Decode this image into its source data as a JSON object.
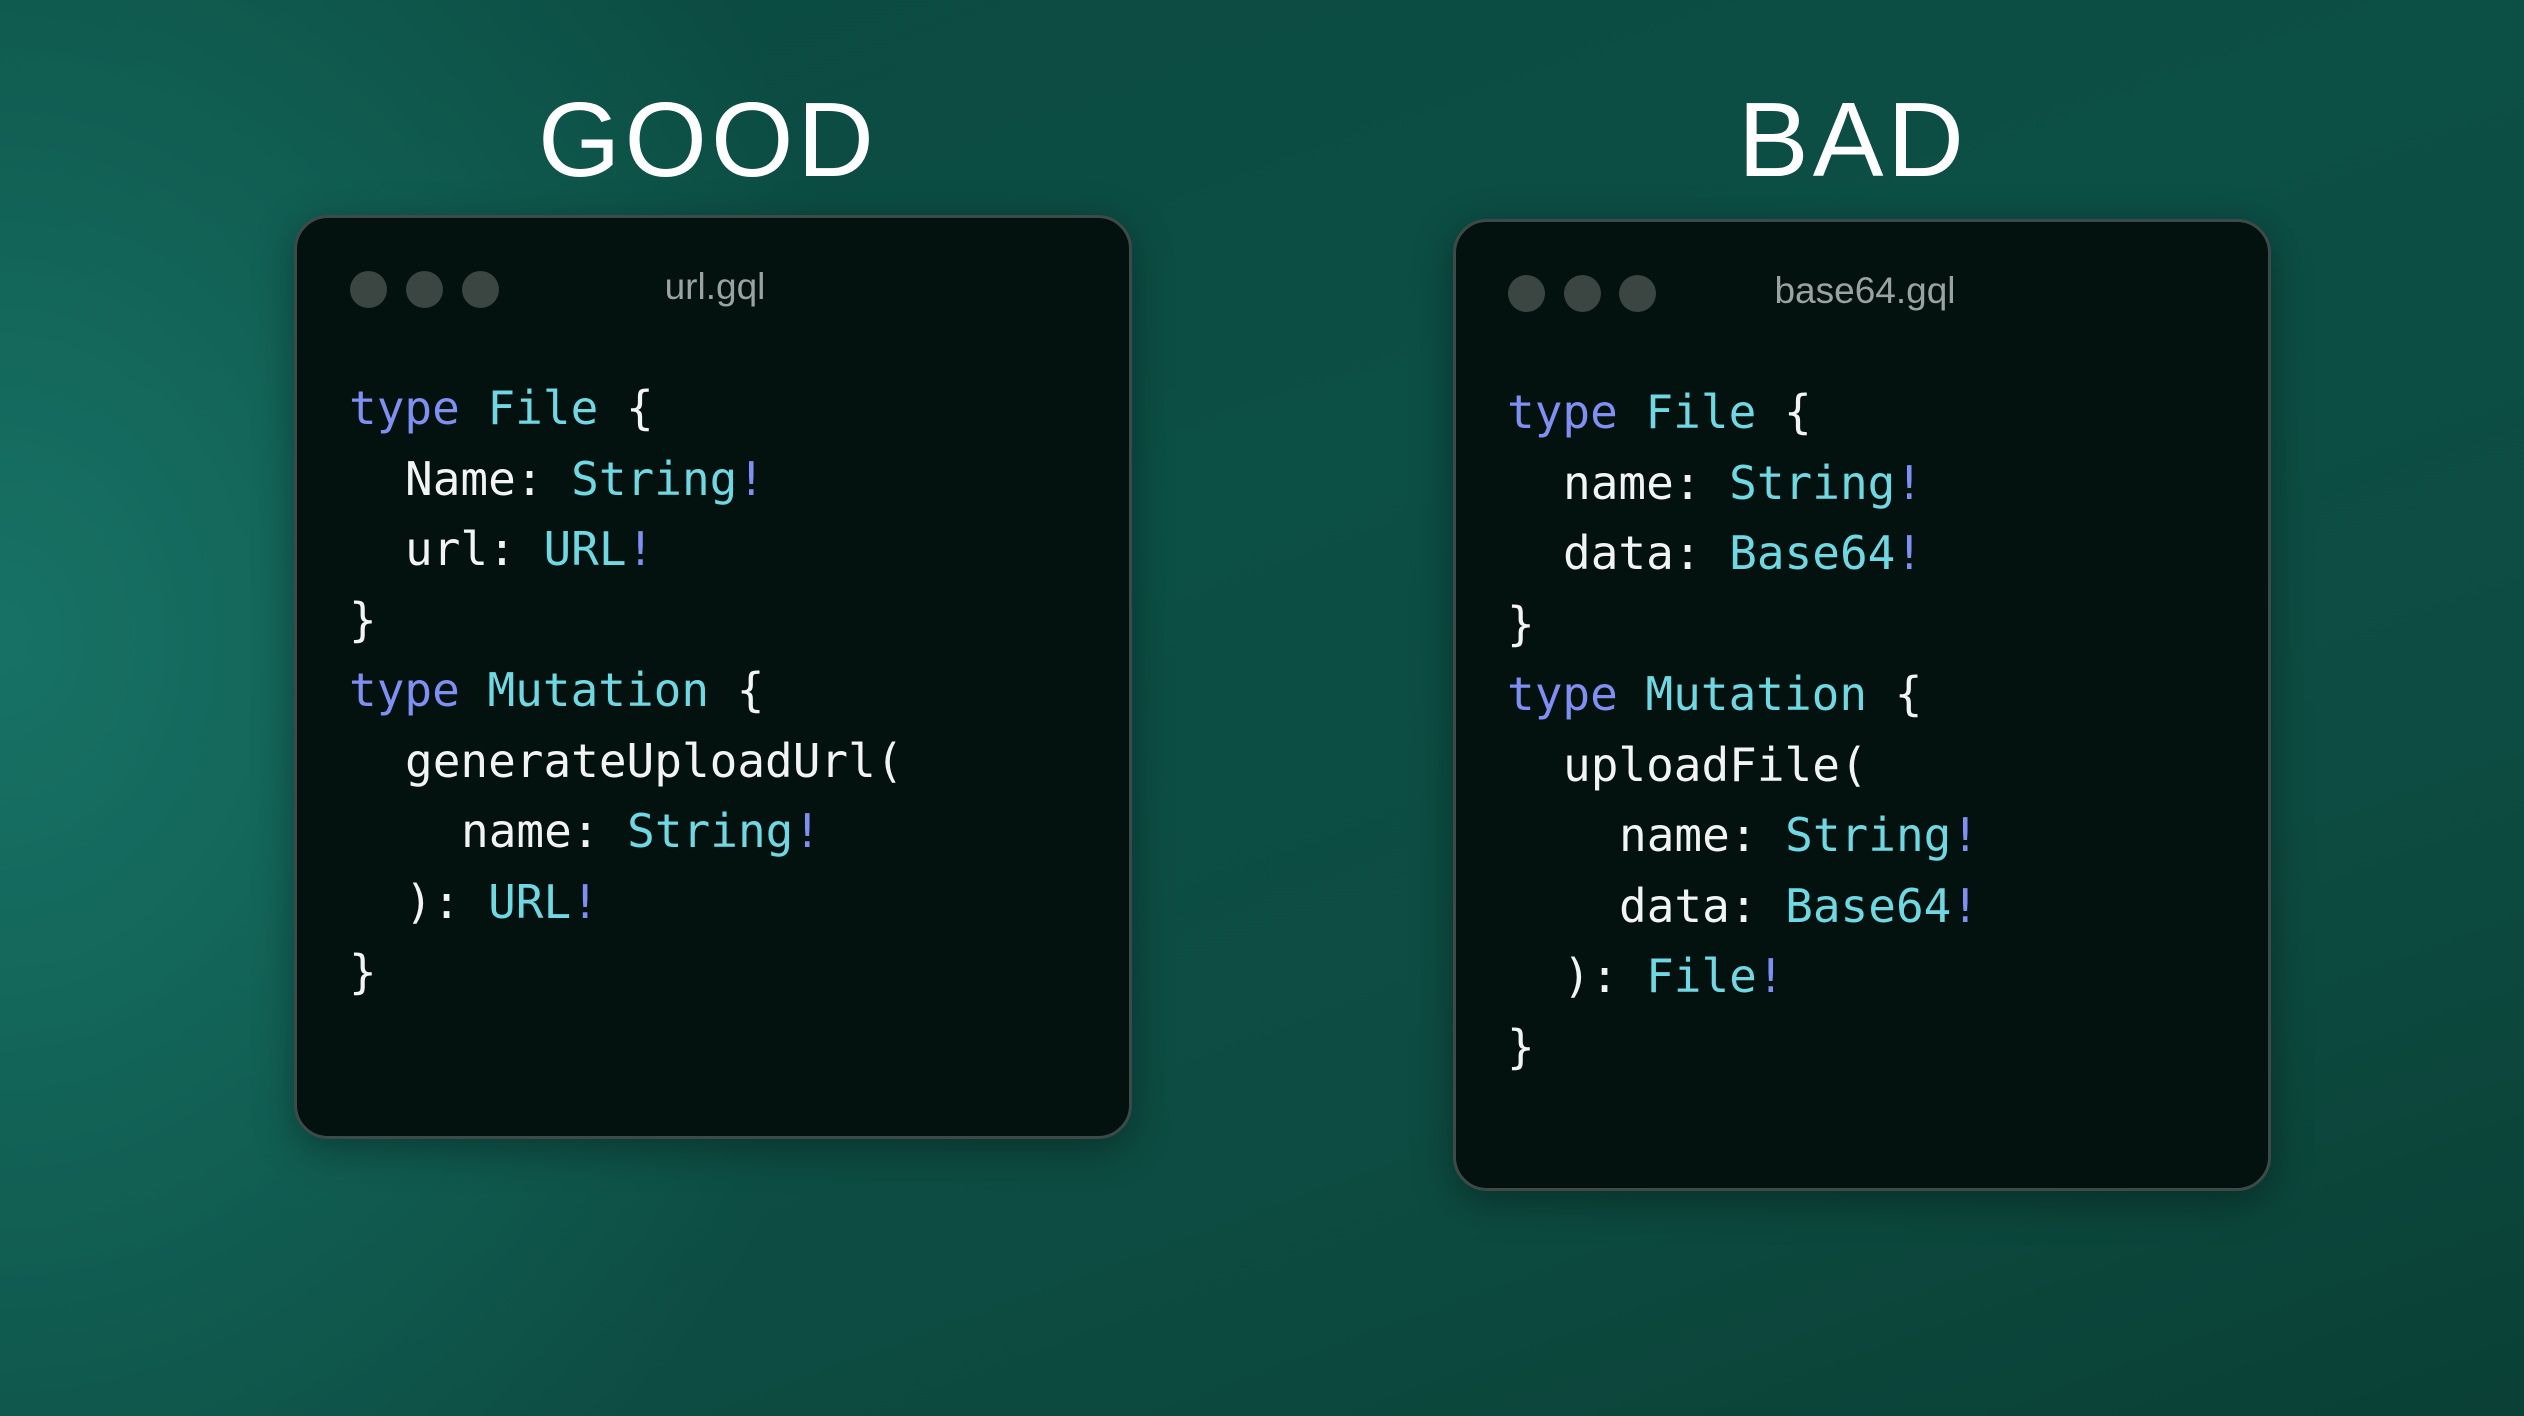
{
  "colors": {
    "keyword": "#7f8ff2",
    "type": "#6fd8e3",
    "bang": "#7f8ff2",
    "plain": "#f2f4f3",
    "background": "#0c4f45",
    "window": "#03110f"
  },
  "good": {
    "heading": "GOOD",
    "filename": "url.gql",
    "lines": [
      {
        "indent": 0,
        "tokens": [
          [
            "type",
            "k"
          ],
          [
            " ",
            "p"
          ],
          [
            "File",
            "t"
          ],
          [
            " {",
            "p"
          ]
        ]
      },
      {
        "indent": 1,
        "tokens": [
          [
            "Name: ",
            "p"
          ],
          [
            "String",
            "t"
          ],
          [
            "!",
            "b"
          ]
        ]
      },
      {
        "indent": 1,
        "tokens": [
          [
            "url: ",
            "p"
          ],
          [
            "URL",
            "t"
          ],
          [
            "!",
            "b"
          ]
        ]
      },
      {
        "indent": 0,
        "tokens": [
          [
            "}",
            "p"
          ]
        ]
      },
      {
        "indent": 0,
        "tokens": [
          [
            "type",
            "k"
          ],
          [
            " ",
            "p"
          ],
          [
            "Mutation",
            "t"
          ],
          [
            " {",
            "p"
          ]
        ]
      },
      {
        "indent": 1,
        "tokens": [
          [
            "generateUploadUrl(",
            "p"
          ]
        ]
      },
      {
        "indent": 2,
        "tokens": [
          [
            "name: ",
            "p"
          ],
          [
            "String",
            "t"
          ],
          [
            "!",
            "b"
          ]
        ]
      },
      {
        "indent": 1,
        "tokens": [
          [
            "): ",
            "p"
          ],
          [
            "URL",
            "t"
          ],
          [
            "!",
            "b"
          ]
        ]
      },
      {
        "indent": 0,
        "tokens": [
          [
            "}",
            "p"
          ]
        ]
      }
    ]
  },
  "bad": {
    "heading": "BAD",
    "filename": "base64.gql",
    "lines": [
      {
        "indent": 0,
        "tokens": [
          [
            "type",
            "k"
          ],
          [
            " ",
            "p"
          ],
          [
            "File",
            "t"
          ],
          [
            " {",
            "p"
          ]
        ]
      },
      {
        "indent": 1,
        "tokens": [
          [
            "name: ",
            "p"
          ],
          [
            "String",
            "t"
          ],
          [
            "!",
            "b"
          ]
        ]
      },
      {
        "indent": 1,
        "tokens": [
          [
            "data: ",
            "p"
          ],
          [
            "Base64",
            "t"
          ],
          [
            "!",
            "b"
          ]
        ]
      },
      {
        "indent": 0,
        "tokens": [
          [
            "}",
            "p"
          ]
        ]
      },
      {
        "indent": 0,
        "tokens": [
          [
            "type",
            "k"
          ],
          [
            " ",
            "p"
          ],
          [
            "Mutation",
            "t"
          ],
          [
            " {",
            "p"
          ]
        ]
      },
      {
        "indent": 1,
        "tokens": [
          [
            "uploadFile(",
            "p"
          ]
        ]
      },
      {
        "indent": 2,
        "tokens": [
          [
            "name: ",
            "p"
          ],
          [
            "String",
            "t"
          ],
          [
            "!",
            "b"
          ]
        ]
      },
      {
        "indent": 2,
        "tokens": [
          [
            "data: ",
            "p"
          ],
          [
            "Base64",
            "t"
          ],
          [
            "!",
            "b"
          ]
        ]
      },
      {
        "indent": 1,
        "tokens": [
          [
            "): ",
            "p"
          ],
          [
            "File",
            "t"
          ],
          [
            "!",
            "b"
          ]
        ]
      },
      {
        "indent": 0,
        "tokens": [
          [
            "}",
            "p"
          ]
        ]
      }
    ]
  }
}
